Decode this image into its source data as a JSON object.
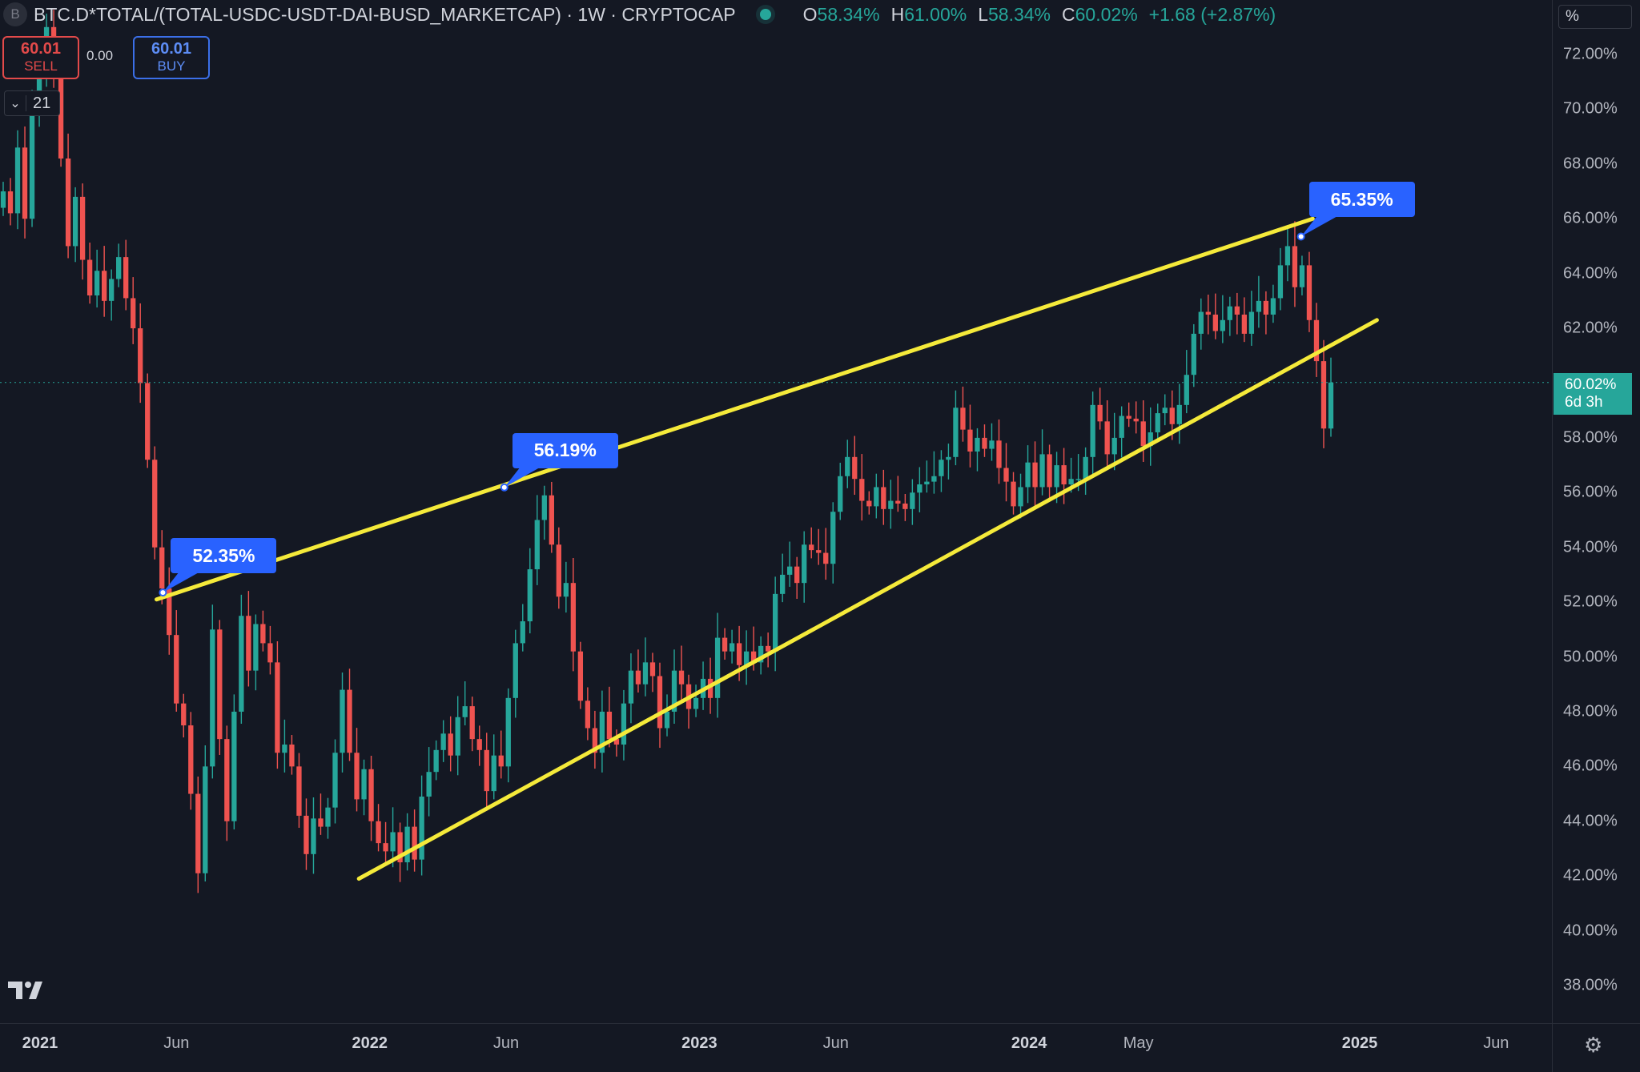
{
  "header": {
    "symbol_badge": "B",
    "title": "BTC.D*TOTAL/(TOTAL-USDC-USDT-DAI-BUSD_MARKETCAP) · 1W · CRYPTOCAP",
    "open_label": "O",
    "open": "58.34%",
    "high_label": "H",
    "high": "61.00%",
    "low_label": "L",
    "low": "58.34%",
    "close_label": "C",
    "close": "60.02%",
    "change": "+1.68 (+2.87%)"
  },
  "trade": {
    "sell_price": "60.01",
    "sell_label": "SELL",
    "spread": "0.00",
    "buy_price": "60.01",
    "buy_label": "BUY",
    "lots": "21",
    "lots_icon": "chevron-down-icon"
  },
  "scale_mode": "%",
  "last_price": {
    "value": "60.02%",
    "countdown": "6d 3h"
  },
  "colors": {
    "up": "#26a69a",
    "down": "#ef5350",
    "trendline": "#f5ea3a",
    "callout": "#2962ff",
    "background": "#141823"
  },
  "chart_data": {
    "type": "candlestick",
    "interval": "1W",
    "y_ticks": [
      "72.00%",
      "70.00%",
      "68.00%",
      "66.00%",
      "64.00%",
      "62.00%",
      "58.00%",
      "56.00%",
      "54.00%",
      "52.00%",
      "50.00%",
      "48.00%",
      "46.00%",
      "44.00%",
      "42.00%",
      "40.00%",
      "38.00%"
    ],
    "y_range": [
      36.4,
      73.8
    ],
    "x_ticks": [
      {
        "label": "2021",
        "date": "2021-01-01",
        "major": true
      },
      {
        "label": "Jun",
        "date": "2021-06-01",
        "major": false
      },
      {
        "label": "2022",
        "date": "2022-01-01",
        "major": true
      },
      {
        "label": "Jun",
        "date": "2022-06-01",
        "major": false
      },
      {
        "label": "2023",
        "date": "2023-01-01",
        "major": true
      },
      {
        "label": "Jun",
        "date": "2023-06-01",
        "major": false
      },
      {
        "label": "2024",
        "date": "2024-01-01",
        "major": true
      },
      {
        "label": "May",
        "date": "2024-05-01",
        "major": false
      },
      {
        "label": "2025",
        "date": "2025-01-01",
        "major": true
      },
      {
        "label": "Jun",
        "date": "2025-06-01",
        "major": false
      }
    ],
    "closes": [
      67.0,
      66.2,
      68.6,
      66.0,
      69.8,
      71.4,
      73.0,
      71.5,
      68.2,
      65.0,
      66.8,
      64.5,
      63.2,
      64.1,
      63.0,
      63.8,
      64.6,
      63.1,
      62.0,
      60.0,
      57.2,
      54.0,
      52.5,
      50.8,
      48.3,
      47.5,
      45.0,
      42.1,
      46.0,
      51.0,
      47.0,
      44.0,
      48.0,
      51.5,
      49.5,
      51.2,
      50.5,
      49.8,
      46.5,
      46.8,
      46.0,
      44.2,
      42.8,
      44.1,
      43.8,
      44.5,
      46.5,
      48.8,
      46.5,
      44.8,
      45.9,
      44.0,
      43.2,
      42.9,
      43.6,
      42.5,
      43.8,
      42.6,
      44.9,
      45.8,
      46.6,
      47.2,
      46.4,
      47.8,
      48.2,
      47.0,
      46.6,
      45.1,
      46.4,
      46.0,
      48.5,
      50.5,
      51.3,
      53.2,
      55.0,
      55.9,
      54.1,
      52.2,
      52.7,
      50.2,
      48.4,
      47.4,
      46.5,
      48.0,
      47.0,
      46.8,
      48.3,
      49.5,
      49.0,
      49.8,
      49.3,
      47.4,
      48.0,
      49.5,
      49.0,
      48.1,
      48.5,
      49.2,
      48.5,
      50.7,
      50.2,
      50.5,
      49.7,
      50.2,
      49.8,
      50.4,
      50.2,
      52.3,
      53.0,
      53.3,
      52.7,
      54.1,
      53.9,
      53.8,
      53.4,
      55.3,
      56.6,
      57.3,
      56.5,
      55.7,
      55.5,
      56.2,
      55.4,
      55.7,
      55.6,
      55.4,
      56.0,
      56.3,
      56.4,
      56.6,
      57.2,
      57.3,
      59.1,
      58.3,
      57.5,
      58.0,
      57.6,
      57.9,
      56.9,
      56.4,
      55.5,
      56.2,
      57.1,
      56.2,
      57.4,
      56.2,
      57.0,
      56.3,
      56.5,
      56.5,
      57.3,
      59.2,
      58.6,
      57.4,
      58.0,
      58.8,
      58.7,
      58.6,
      57.7,
      58.2,
      58.9,
      59.1,
      58.5,
      59.2,
      60.3,
      61.8,
      62.6,
      62.5,
      61.9,
      62.3,
      62.8,
      62.5,
      61.8,
      62.6,
      63.0,
      62.5,
      63.1,
      64.3,
      65.0,
      63.5,
      64.3,
      62.3,
      60.8,
      58.34,
      60.02
    ],
    "upper_trendline": {
      "start_date": "2021-05-10",
      "start": 52.1,
      "end_date": "2024-11-10",
      "end": 66.0
    },
    "lower_trendline": {
      "start_date": "2021-12-20",
      "start": 41.9,
      "end_date": "2025-01-20",
      "end": 62.3
    },
    "annotations": [
      {
        "label": "52.35%",
        "date": "2021-05-17",
        "value": 52.35
      },
      {
        "label": "56.19%",
        "date": "2022-05-30",
        "value": 56.19
      },
      {
        "label": "65.35%",
        "date": "2024-10-28",
        "value": 65.35
      }
    ]
  }
}
